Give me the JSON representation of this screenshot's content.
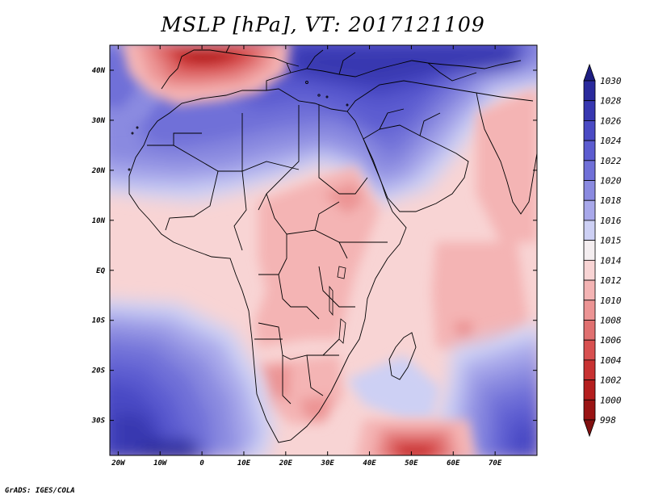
{
  "title": "MSLP [hPa], VT: 2017121109",
  "footer": "GrADS: IGES/COLA",
  "map": {
    "variable": "MSLP",
    "units": "hPa",
    "valid_time": "2017121109",
    "lon_range": [
      -22,
      80
    ],
    "lat_range": [
      -37,
      45
    ],
    "lon_ticks": [
      {
        "value": -20,
        "label": "20W"
      },
      {
        "value": -10,
        "label": "10W"
      },
      {
        "value": 0,
        "label": "0"
      },
      {
        "value": 10,
        "label": "10E"
      },
      {
        "value": 20,
        "label": "20E"
      },
      {
        "value": 30,
        "label": "30E"
      },
      {
        "value": 40,
        "label": "40E"
      },
      {
        "value": 50,
        "label": "50E"
      },
      {
        "value": 60,
        "label": "60E"
      },
      {
        "value": 70,
        "label": "70E"
      }
    ],
    "lat_ticks": [
      {
        "value": 40,
        "label": "40N"
      },
      {
        "value": 30,
        "label": "30N"
      },
      {
        "value": 20,
        "label": "20N"
      },
      {
        "value": 10,
        "label": "10N"
      },
      {
        "value": 0,
        "label": "EQ"
      },
      {
        "value": -10,
        "label": "10S"
      },
      {
        "value": -20,
        "label": "20S"
      },
      {
        "value": -30,
        "label": "30S"
      }
    ]
  },
  "colorbar": {
    "labels": [
      "1030",
      "1028",
      "1026",
      "1024",
      "1022",
      "1020",
      "1018",
      "1016",
      "1015",
      "1014",
      "1012",
      "1010",
      "1008",
      "1006",
      "1004",
      "1002",
      "1000",
      "998"
    ],
    "colors": [
      "#1e1e82",
      "#2a2a9c",
      "#3737b0",
      "#4a4ac4",
      "#5c5cd0",
      "#7070d8",
      "#8a8ae0",
      "#a8a8ea",
      "#cdd0f4",
      "#f4eef0",
      "#f8d4d4",
      "#f4b4b4",
      "#ec9494",
      "#e07070",
      "#d85050",
      "#c83232",
      "#b41e1e",
      "#9a1414",
      "#801010"
    ]
  }
}
